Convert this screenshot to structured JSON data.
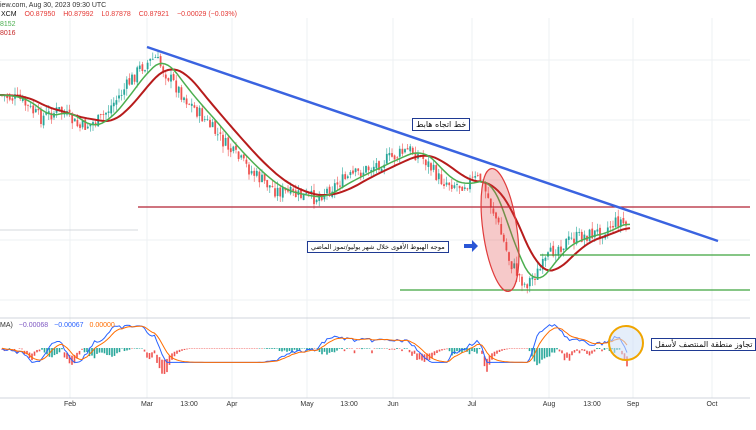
{
  "header": {
    "source_text": "iew.com, Aug 30, 2023 09:30 UTC",
    "symbol": "XCM",
    "open": "O0.87950",
    "high": "H0.87992",
    "low": "L0.87878",
    "close": "C0.87921",
    "change": "−0.00029 (−0.03%)",
    "ma_fast_value": "8152",
    "ma_slow_value": "8016"
  },
  "indicator_header": {
    "name": "MA)",
    "v1": "−0.00068",
    "v2": "−0.00067",
    "v3": "0.00000"
  },
  "annotations": {
    "trendline_label": "خط اتجاه هابط",
    "wave_label": "موجه الهبوط الأقوى خلال شهر يوليو/تموز الماضي",
    "indicator_label": "تجاوز منطقة المنتصف لأسفل"
  },
  "x_axis": {
    "labels": [
      "Feb",
      "Mar",
      "13:00",
      "Apr",
      "May",
      "13:00",
      "Jun",
      "Jul",
      "Aug",
      "13:00",
      "Sep",
      "Oct"
    ]
  },
  "colors": {
    "trendline": "#3a63e0",
    "resistance": "#b22233",
    "support": "#3fa33f",
    "ma_fast": "#4caf50",
    "ma_slow": "#b71c1c",
    "candle_up": "#26a69a",
    "candle_down": "#ef5350",
    "macd_line": "#2962ff",
    "signal_line": "#ff6d00",
    "highlight_ellipse": "#e03c3c",
    "highlight_circle": "#f0a500"
  },
  "chart_data": {
    "type": "candlestick",
    "title": "",
    "x_axis_ticks": [
      "Feb",
      "Mar",
      "13:00",
      "Apr",
      "May",
      "13:00",
      "Jun",
      "Jul",
      "Aug",
      "13:00",
      "Sep",
      "Oct"
    ],
    "last_close": 0.87921,
    "price_path_relative": [
      0.55,
      0.5,
      0.45,
      0.55,
      0.4,
      0.3,
      0.35,
      0.15,
      0.1,
      0.2,
      0.35,
      0.3,
      0.45,
      0.5,
      0.6,
      0.62,
      0.58,
      0.5,
      0.45,
      0.4,
      0.35,
      0.38,
      0.45,
      0.48,
      0.4,
      0.6,
      0.85,
      0.82,
      0.65,
      0.55,
      0.48,
      0.45,
      0.42
    ],
    "overlays": [
      "downtrend line",
      "horizontal resistance",
      "two horizontal supports",
      "fast moving average",
      "slow moving average"
    ],
    "oscillator": "MACD-style histogram with two lines"
  }
}
